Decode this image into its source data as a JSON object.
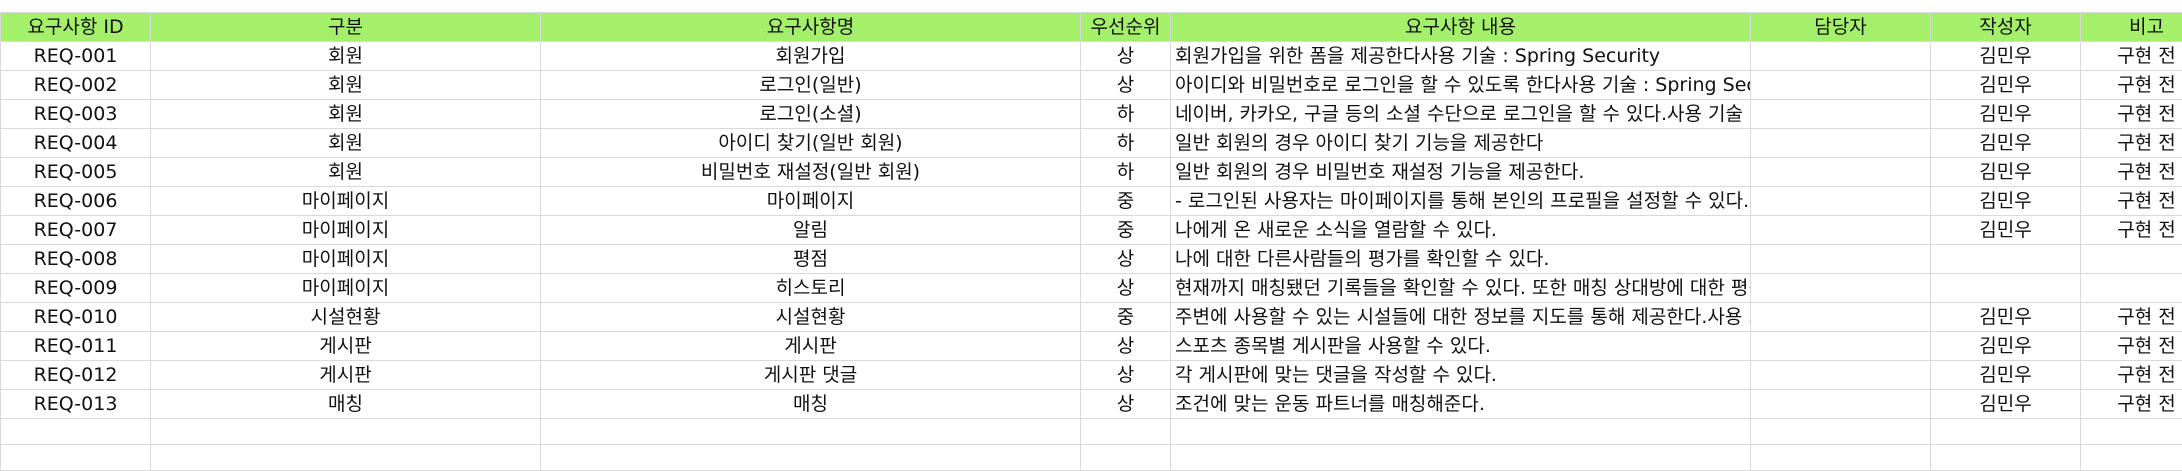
{
  "columns": [
    "요구사항 ID",
    "구분",
    "요구사항명",
    "우선순위",
    "요구사항 내용",
    "담당자",
    "작성자",
    "비고"
  ],
  "rows": [
    {
      "id": "REQ-001",
      "category": "회원",
      "name": "회원가입",
      "priority": "상",
      "content": "회원가입을 위한 폼을 제공한다사용 기술 : Spring Security",
      "owner": "",
      "author": "김민우",
      "note": "구현 전"
    },
    {
      "id": "REQ-002",
      "category": "회원",
      "name": "로그인(일반)",
      "priority": "상",
      "content": "아이디와 비밀번호로 로그인을 할 수 있도록 한다사용 기술 : Spring Security",
      "owner": "",
      "author": "김민우",
      "note": "구현 전"
    },
    {
      "id": "REQ-003",
      "category": "회원",
      "name": "로그인(소셜)",
      "priority": "하",
      "content": "네이버, 카카오, 구글 등의 소셜 수단으로 로그인을 할 수 있다.사용 기술 : Oauth, Spring Security",
      "owner": "",
      "author": "김민우",
      "note": "구현 전"
    },
    {
      "id": "REQ-004",
      "category": "회원",
      "name": "아이디 찾기(일반 회원)",
      "priority": "하",
      "content": "일반 회원의 경우 아이디 찾기 기능을 제공한다",
      "owner": "",
      "author": "김민우",
      "note": "구현 전"
    },
    {
      "id": "REQ-005",
      "category": "회원",
      "name": "비밀번호 재설정(일반 회원)",
      "priority": "하",
      "content": "일반 회원의 경우 비밀번호 재설정 기능을 제공한다.",
      "owner": "",
      "author": "김민우",
      "note": "구현 전"
    },
    {
      "id": "REQ-006",
      "category": "마이페이지",
      "name": "마이페이지",
      "priority": "중",
      "content": "- 로그인된 사용자는 마이페이지를 통해 본인의 프로필을 설정할 수 있다. - 현재 진행중인 매칭에",
      "owner": "",
      "author": "김민우",
      "note": "구현 전"
    },
    {
      "id": "REQ-007",
      "category": "마이페이지",
      "name": "알림",
      "priority": "중",
      "content": "나에게 온 새로운 소식을 열람할 수 있다.",
      "owner": "",
      "author": "김민우",
      "note": "구현 전"
    },
    {
      "id": "REQ-008",
      "category": "마이페이지",
      "name": "평점",
      "priority": "상",
      "content": "나에 대한 다른사람들의 평가를 확인할 수 있다.",
      "owner": "",
      "author": "",
      "note": ""
    },
    {
      "id": "REQ-009",
      "category": "마이페이지",
      "name": "히스토리",
      "priority": "상",
      "content": "현재까지 매칭됐던 기록들을 확인할 수 있다. 또한 매칭 상대방에 대한 평점을 남길 수 있다.",
      "owner": "",
      "author": "",
      "note": ""
    },
    {
      "id": "REQ-010",
      "category": "시설현황",
      "name": "시설현황",
      "priority": "중",
      "content": "주변에 사용할 수 있는 시설들에 대한 정보를 지도를 통해 제공한다.사용 기술 : 카카오 지도 API,",
      "owner": "",
      "author": "김민우",
      "note": "구현 전"
    },
    {
      "id": "REQ-011",
      "category": "게시판",
      "name": "게시판",
      "priority": "상",
      "content": "스포츠 종목별 게시판을 사용할 수 있다.",
      "owner": "",
      "author": "김민우",
      "note": "구현 전"
    },
    {
      "id": "REQ-012",
      "category": "게시판",
      "name": "게시판 댓글",
      "priority": "상",
      "content": "각 게시판에 맞는 댓글을 작성할 수 있다.",
      "owner": "",
      "author": "김민우",
      "note": "구현 전"
    },
    {
      "id": "REQ-013",
      "category": "매칭",
      "name": "매칭",
      "priority": "상",
      "content": "조건에 맞는 운동 파트너를 매칭해준다.",
      "owner": "",
      "author": "김민우",
      "note": "구현 전"
    }
  ]
}
